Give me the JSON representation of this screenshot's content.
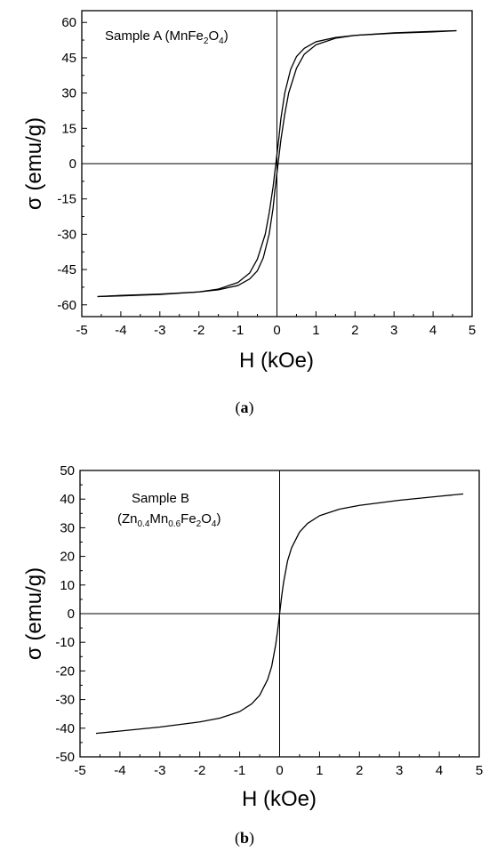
{
  "chart_data": [
    {
      "type": "line",
      "panel_label": "a",
      "xlabel": "H (kOe)",
      "ylabel": "σ (emu/g)",
      "xlim": [
        -5,
        5
      ],
      "ylim": [
        -65,
        65
      ],
      "xticks": [
        -5,
        -4,
        -3,
        -2,
        -1,
        0,
        1,
        2,
        3,
        4,
        5
      ],
      "yticks": [
        60,
        45,
        30,
        15,
        0,
        -15,
        -30,
        -45,
        -60
      ],
      "grid": false,
      "annotation": {
        "text": "Sample A (MnFe",
        "sub1": "2",
        "mid": "O",
        "sub2": "4",
        "end": ")"
      },
      "series": [
        {
          "branch": "descending",
          "x": [
            4.6,
            4.0,
            3.0,
            2.0,
            1.5,
            1.0,
            0.7,
            0.5,
            0.35,
            0.2,
            0.1,
            0.05,
            0.0,
            -0.05,
            -0.1,
            -0.2,
            -0.3,
            -0.5,
            -0.7,
            -1.0,
            -1.5,
            -2.0,
            -3.0,
            -4.0,
            -4.6
          ],
          "y": [
            56.5,
            56.2,
            55.6,
            54.5,
            53.6,
            51.8,
            49.0,
            45.5,
            40.0,
            30.0,
            19.0,
            11.0,
            4.0,
            -3.0,
            -10.0,
            -21.0,
            -30.0,
            -40.5,
            -46.5,
            -50.5,
            -53.3,
            -54.5,
            -55.4,
            -56.0,
            -56.5
          ]
        },
        {
          "branch": "ascending",
          "x": [
            -4.6,
            -4.0,
            -3.0,
            -2.0,
            -1.5,
            -1.0,
            -0.7,
            -0.5,
            -0.35,
            -0.2,
            -0.1,
            -0.05,
            0.0,
            0.05,
            0.1,
            0.2,
            0.3,
            0.5,
            0.7,
            1.0,
            1.5,
            2.0,
            3.0,
            4.0,
            4.6
          ],
          "y": [
            -56.5,
            -56.2,
            -55.6,
            -54.5,
            -53.6,
            -51.8,
            -49.0,
            -45.5,
            -40.0,
            -30.0,
            -19.0,
            -11.0,
            -4.0,
            3.0,
            10.0,
            21.0,
            30.0,
            40.5,
            46.5,
            50.5,
            53.3,
            54.5,
            55.4,
            56.0,
            56.5
          ]
        }
      ]
    },
    {
      "type": "line",
      "panel_label": "b",
      "xlabel": "H (kOe)",
      "ylabel": "σ (emu/g)",
      "xlim": [
        -5,
        5
      ],
      "ylim": [
        -50,
        50
      ],
      "xticks": [
        -5,
        -4,
        -3,
        -2,
        -1,
        0,
        1,
        2,
        3,
        4,
        5
      ],
      "yticks": [
        50,
        40,
        30,
        20,
        10,
        0,
        -10,
        -20,
        -30,
        -40,
        -50
      ],
      "grid": false,
      "annotation": {
        "line1": "Sample B",
        "line2_parts": [
          "(Zn",
          "0.4",
          "Mn",
          "0.6",
          "Fe",
          "2",
          "O",
          "4",
          ")"
        ]
      },
      "series": [
        {
          "x": [
            -4.6,
            -4.0,
            -3.0,
            -2.0,
            -1.5,
            -1.0,
            -0.7,
            -0.5,
            -0.3,
            -0.2,
            -0.1,
            -0.05,
            0.0,
            0.05,
            0.1,
            0.2,
            0.3,
            0.5,
            0.7,
            1.0,
            1.5,
            2.0,
            3.0,
            4.0,
            4.6
          ],
          "y": [
            -41.8,
            -41.0,
            -39.6,
            -37.8,
            -36.5,
            -34.2,
            -31.5,
            -28.5,
            -23.0,
            -18.5,
            -11.0,
            -6.0,
            0.0,
            6.0,
            11.0,
            18.5,
            23.0,
            28.5,
            31.5,
            34.2,
            36.5,
            37.8,
            39.6,
            41.0,
            41.8
          ]
        }
      ]
    }
  ]
}
